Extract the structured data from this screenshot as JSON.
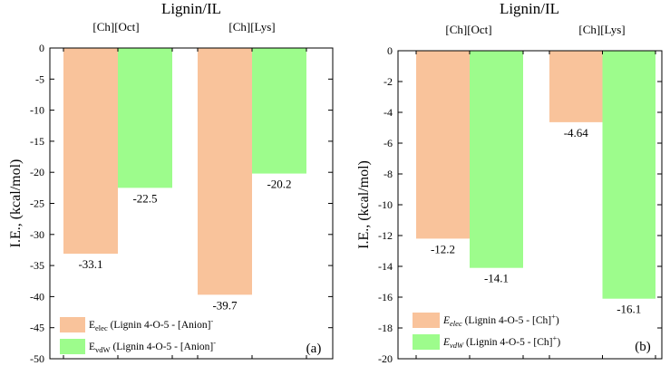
{
  "chart_data": [
    {
      "type": "bar",
      "title": "Lignin/IL",
      "panel_label": "(a)",
      "ylabel": "I.E., (kcal/mol)",
      "ylim": [
        -50,
        0
      ],
      "yticks": [
        0,
        -5,
        -10,
        -15,
        -20,
        -25,
        -30,
        -35,
        -40,
        -45,
        -50
      ],
      "categories": [
        "[Ch][Oct]",
        "[Ch][Lys]"
      ],
      "series": [
        {
          "name": "E_elec",
          "legend_main": "E",
          "legend_sub": "elec",
          "legend_rest": " (Lignin 4-O-5 - [Anion]",
          "legend_sup": "-",
          "legend_close": "",
          "color": "#f9c39b",
          "values": [
            -33.1,
            -39.7
          ],
          "labels": [
            "-33.1",
            "-39.7"
          ]
        },
        {
          "name": "E_vdW",
          "legend_main": "E",
          "legend_sub": "vdW",
          "legend_rest": " (Lignin 4-O-5 - [Anion]",
          "legend_sup": "-",
          "legend_close": "",
          "color": "#9dfc8c",
          "values": [
            -22.5,
            -20.2
          ],
          "labels": [
            "-22.5",
            "-20.2"
          ]
        }
      ]
    },
    {
      "type": "bar",
      "title": "Lignin/IL",
      "panel_label": "(b)",
      "ylabel": "I.E., (kcal/mol)",
      "ylim": [
        -20,
        0
      ],
      "yticks": [
        0,
        -2,
        -4,
        -6,
        -8,
        -10,
        -12,
        -14,
        -16,
        -18,
        -20
      ],
      "categories": [
        "[Ch][Oct]",
        "[Ch][Lys]"
      ],
      "series": [
        {
          "name": "E_elec",
          "legend_main": "E",
          "legend_sub": "elec",
          "legend_rest": " (Lignin 4-O-5 - [Ch]",
          "legend_sup": "+",
          "legend_close": ")",
          "color": "#f9c39b",
          "values": [
            -12.2,
            -4.64
          ],
          "labels": [
            "-12.2",
            "-4.64"
          ]
        },
        {
          "name": "E_vdW",
          "legend_main": "E",
          "legend_sub": "vdW",
          "legend_rest": " (Lignin 4-O-5 - [Ch]",
          "legend_sup": "+",
          "legend_close": ")",
          "color": "#9dfc8c",
          "values": [
            -14.1,
            -16.1
          ],
          "labels": [
            "-14.1",
            "-16.1"
          ]
        }
      ]
    }
  ]
}
